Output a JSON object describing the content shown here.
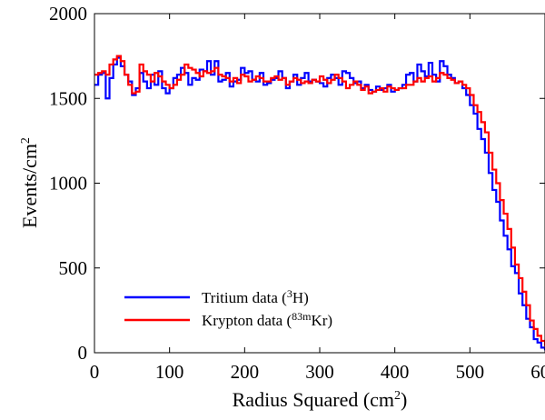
{
  "chart_data": {
    "type": "line",
    "step": true,
    "xlabel": {
      "main": "Radius Squared (cm",
      "sup": "2",
      "end": ")"
    },
    "ylabel": {
      "main": "Events/cm",
      "sup": "2"
    },
    "xlim": [
      0,
      600
    ],
    "ylim": [
      0,
      2000
    ],
    "xticks": [
      0,
      100,
      200,
      300,
      400,
      500,
      600
    ],
    "yticks": [
      0,
      500,
      1000,
      1500,
      2000
    ],
    "grid": false,
    "legend_position": "lower-left",
    "bin_width": 5,
    "series": [
      {
        "name": "Tritium data",
        "legend": {
          "pre": "Tritium data (",
          "sup": "3",
          "post": "H)"
        },
        "color": "#0000ff",
        "values": [
          1580,
          1640,
          1650,
          1500,
          1620,
          1700,
          1740,
          1690,
          1640,
          1600,
          1520,
          1560,
          1650,
          1600,
          1560,
          1640,
          1580,
          1660,
          1560,
          1530,
          1560,
          1620,
          1640,
          1680,
          1650,
          1580,
          1620,
          1610,
          1670,
          1660,
          1720,
          1640,
          1720,
          1600,
          1610,
          1650,
          1570,
          1600,
          1610,
          1680,
          1650,
          1660,
          1610,
          1600,
          1650,
          1580,
          1590,
          1610,
          1620,
          1660,
          1620,
          1560,
          1600,
          1640,
          1580,
          1620,
          1650,
          1600,
          1610,
          1600,
          1590,
          1570,
          1620,
          1640,
          1620,
          1580,
          1660,
          1650,
          1620,
          1590,
          1600,
          1560,
          1580,
          1550,
          1540,
          1570,
          1550,
          1560,
          1580,
          1540,
          1550,
          1560,
          1580,
          1640,
          1650,
          1600,
          1700,
          1660,
          1630,
          1710,
          1640,
          1600,
          1720,
          1690,
          1640,
          1620,
          1590,
          1600,
          1560,
          1520,
          1460,
          1410,
          1320,
          1260,
          1180,
          1060,
          960,
          890,
          780,
          690,
          610,
          510,
          470,
          350,
          280,
          200,
          150,
          80,
          60,
          30,
          20,
          10,
          5,
          3,
          2,
          1,
          0,
          0,
          0,
          0
        ]
      },
      {
        "name": "Krypton data",
        "legend": {
          "pre": "Krypton data (",
          "sup": "83m",
          "post": "Kr)"
        },
        "color": "#ff0000",
        "values": [
          1640,
          1650,
          1660,
          1640,
          1700,
          1730,
          1750,
          1720,
          1640,
          1580,
          1530,
          1540,
          1700,
          1660,
          1640,
          1600,
          1650,
          1630,
          1600,
          1580,
          1560,
          1580,
          1610,
          1640,
          1700,
          1680,
          1670,
          1650,
          1630,
          1660,
          1650,
          1660,
          1680,
          1640,
          1630,
          1620,
          1600,
          1620,
          1590,
          1640,
          1630,
          1600,
          1610,
          1630,
          1620,
          1600,
          1600,
          1620,
          1630,
          1610,
          1620,
          1580,
          1600,
          1620,
          1610,
          1590,
          1600,
          1590,
          1610,
          1600,
          1630,
          1610,
          1590,
          1610,
          1640,
          1620,
          1600,
          1560,
          1580,
          1600,
          1580,
          1550,
          1570,
          1530,
          1540,
          1550,
          1560,
          1540,
          1570,
          1560,
          1550,
          1560,
          1560,
          1580,
          1580,
          1600,
          1620,
          1600,
          1620,
          1630,
          1600,
          1620,
          1650,
          1640,
          1620,
          1610,
          1590,
          1600,
          1580,
          1560,
          1520,
          1460,
          1420,
          1360,
          1300,
          1180,
          1080,
          1000,
          900,
          820,
          730,
          620,
          520,
          440,
          360,
          280,
          190,
          140,
          100,
          70,
          45,
          30,
          18,
          10,
          5,
          3,
          1,
          0,
          0,
          0
        ]
      }
    ]
  }
}
